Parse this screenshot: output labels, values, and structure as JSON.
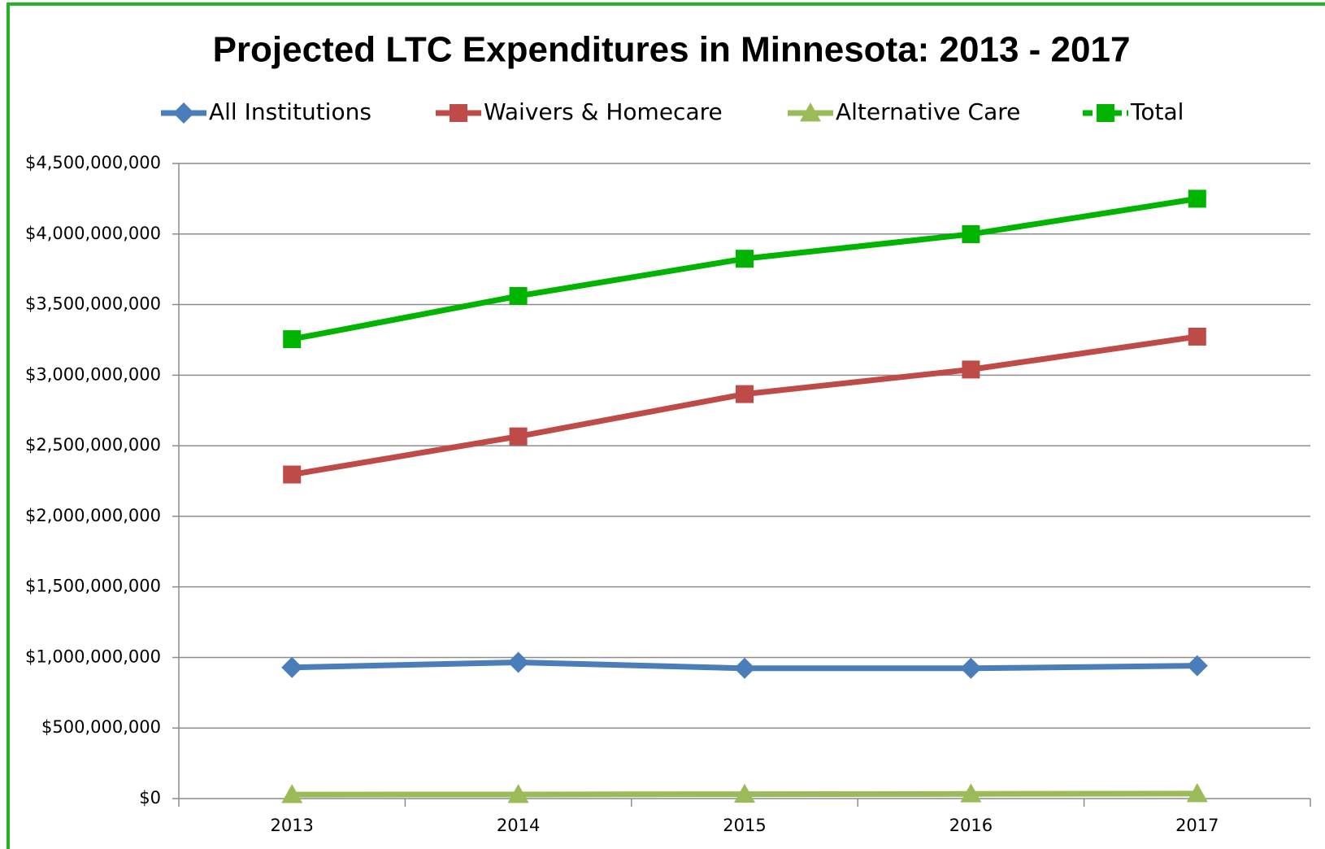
{
  "chart_data": {
    "type": "line",
    "title": "Projected LTC Expenditures in Minnesota: 2013 - 2017",
    "categories": [
      "2013",
      "2014",
      "2015",
      "2016",
      "2017"
    ],
    "series": [
      {
        "name": "All Institutions",
        "color": "#4a7ebb",
        "marker": "diamond",
        "values": [
          929000000,
          965000000,
          923000000,
          923000000,
          941000000
        ]
      },
      {
        "name": "Waivers & Homecare",
        "color": "#be4b48",
        "marker": "square",
        "values": [
          2296000000,
          2566000000,
          2866000000,
          3040000000,
          3273000000
        ]
      },
      {
        "name": "Alternative Care",
        "color": "#9bbb59",
        "marker": "triangle",
        "values": [
          28000000,
          29000000,
          31000000,
          33000000,
          35000000
        ]
      },
      {
        "name": "Total",
        "color": "#00b400",
        "marker": "square",
        "dashed_legend": true,
        "values": [
          3255000000,
          3561000000,
          3825000000,
          3999000000,
          4250000000
        ]
      }
    ],
    "ylim": [
      0,
      4500000000
    ],
    "yticks": [
      {
        "value": 0,
        "label": "$0"
      },
      {
        "value": 500000000,
        "label": "$500,000,000"
      },
      {
        "value": 1000000000,
        "label": "$1,000,000,000"
      },
      {
        "value": 1500000000,
        "label": "$1,500,000,000"
      },
      {
        "value": 2000000000,
        "label": "$2,000,000,000"
      },
      {
        "value": 2500000000,
        "label": "$2,500,000,000"
      },
      {
        "value": 3000000000,
        "label": "$3,000,000,000"
      },
      {
        "value": 3500000000,
        "label": "$3,500,000,000"
      },
      {
        "value": 4000000000,
        "label": "$4,000,000,000"
      },
      {
        "value": 4500000000,
        "label": "$4,500,000,000"
      }
    ],
    "grid": true,
    "legend": "top"
  }
}
